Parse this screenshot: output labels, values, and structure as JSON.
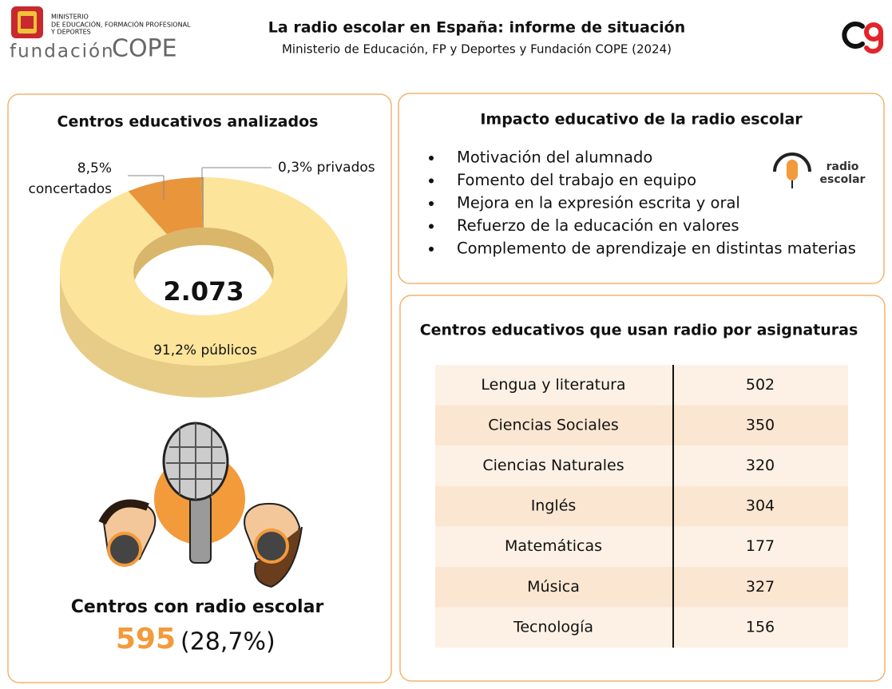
{
  "header": {
    "ministry": [
      "MINISTERIO",
      "DE EDUCACIÓN, FORMACIÓN PROFESIONAL",
      "Y DEPORTES"
    ],
    "foundation": "fundación",
    "foundation_brand": "COPE",
    "title": "La radio escolar en España: informe de situación",
    "subtitle": "Ministerio de Educación, FP y Deportes y Fundación COPE (2024)"
  },
  "chart_data": {
    "type": "pie",
    "title": "Centros educativos analizados",
    "center_label": "2.073",
    "categories": [
      "privados",
      "concertados",
      "públicos"
    ],
    "values": [
      0.3,
      8.5,
      91.2
    ],
    "value_labels": [
      "0,3%",
      "8,5%",
      "91,2%"
    ],
    "colors": [
      "#b79a6e",
      "#e8953c",
      "#fde49b"
    ]
  },
  "radio_centers": {
    "title": "Centros con radio escolar",
    "count": "595",
    "share": "(28,7%)"
  },
  "impact": {
    "title": "Impacto educativo de la radio escolar",
    "items": [
      "Motivación del alumnado",
      "Fomento del trabajo en equipo",
      "Mejora en la expresión escrita y oral",
      "Refuerzo de la educación en valores",
      "Complemento de aprendizaje en distintas materias"
    ],
    "logo": [
      "radio",
      "escolar"
    ]
  },
  "table": {
    "title": "Centros educativos que usan radio por asignaturas",
    "rows": [
      [
        "Lengua y literatura",
        502
      ],
      [
        "Ciencias Sociales",
        350
      ],
      [
        "Ciencias Naturales",
        320
      ],
      [
        "Inglés",
        304
      ],
      [
        "Matemáticas",
        177
      ],
      [
        "Música",
        327
      ],
      [
        "Tecnología",
        156
      ]
    ]
  }
}
